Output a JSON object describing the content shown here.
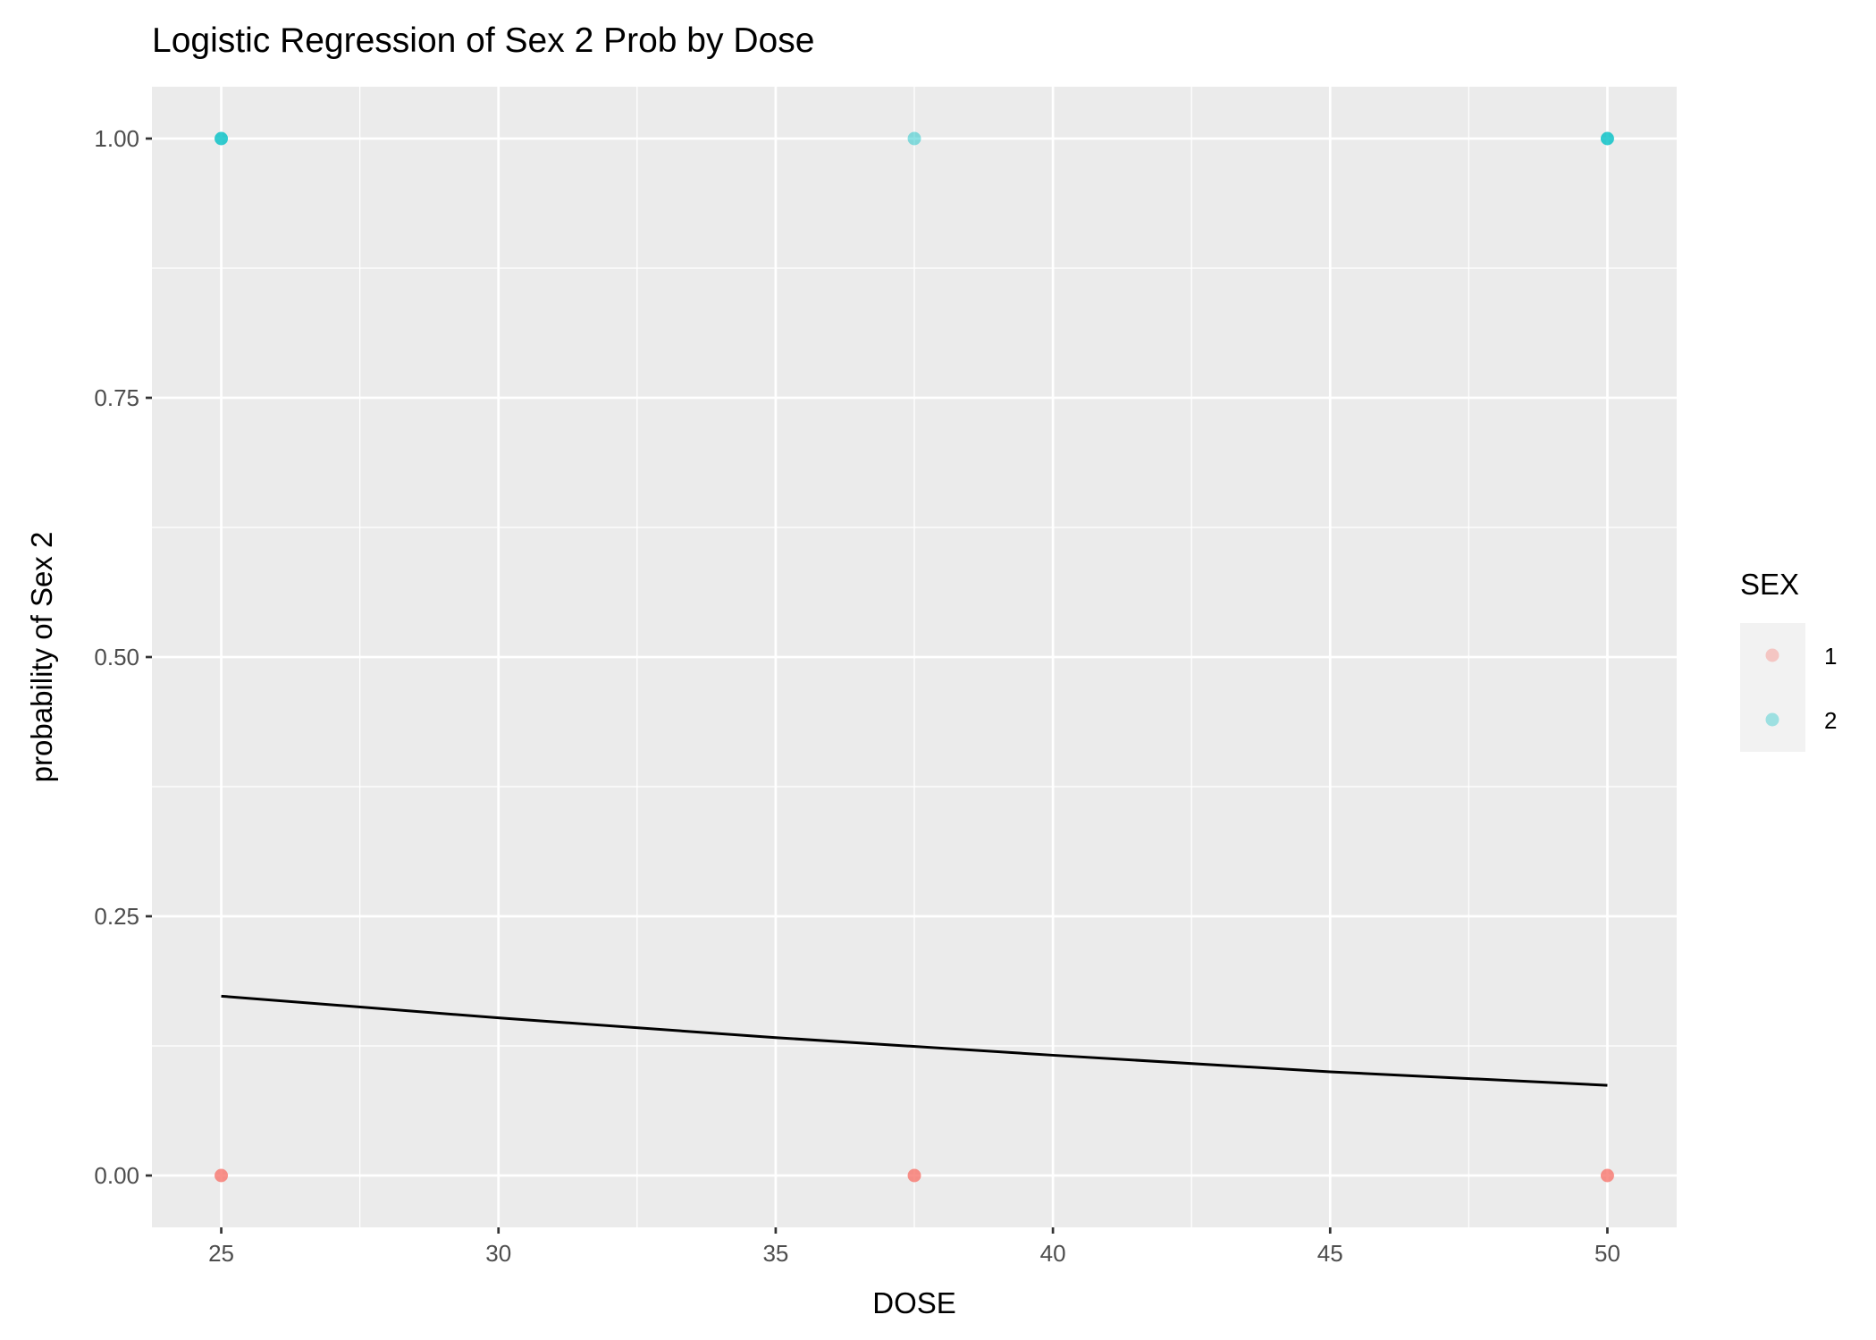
{
  "chart_data": {
    "type": "scatter",
    "title": "Logistic Regression of Sex 2 Prob by Dose",
    "xlabel": "DOSE",
    "ylabel": "probability of Sex 2",
    "xlim": [
      23.75,
      51.25
    ],
    "ylim": [
      -0.05,
      1.05
    ],
    "x_ticks": [
      25,
      30,
      35,
      40,
      45,
      50
    ],
    "y_ticks": [
      0.0,
      0.25,
      0.5,
      0.75,
      1.0
    ],
    "x_tick_labels": [
      "25",
      "30",
      "35",
      "40",
      "45",
      "50"
    ],
    "y_tick_labels": [
      "0.00",
      "0.25",
      "0.50",
      "0.75",
      "1.00"
    ],
    "grid": true,
    "legend": {
      "title": "SEX",
      "position": "right",
      "entries": [
        {
          "label": "1",
          "color": "#F8766D"
        },
        {
          "label": "2",
          "color": "#00BFC4"
        }
      ]
    },
    "series": [
      {
        "name": "1",
        "color": "#F8766D",
        "points": [
          {
            "x": 25,
            "y": 0
          },
          {
            "x": 37.5,
            "y": 0
          },
          {
            "x": 50,
            "y": 0
          }
        ]
      },
      {
        "name": "2",
        "color": "#00BFC4",
        "points": [
          {
            "x": 25,
            "y": 1
          },
          {
            "x": 37.5,
            "y": 1
          },
          {
            "x": 50,
            "y": 1
          }
        ]
      }
    ],
    "fit_line": {
      "color": "#000000",
      "points": [
        {
          "x": 25,
          "y": 0.173
        },
        {
          "x": 30,
          "y": 0.152
        },
        {
          "x": 35,
          "y": 0.133
        },
        {
          "x": 40,
          "y": 0.116
        },
        {
          "x": 45,
          "y": 0.1
        },
        {
          "x": 50,
          "y": 0.087
        }
      ]
    },
    "colors": {
      "panel": "#EBEBEB",
      "grid": "#FFFFFF",
      "legend_key_bg": "#F2F2F2"
    }
  }
}
